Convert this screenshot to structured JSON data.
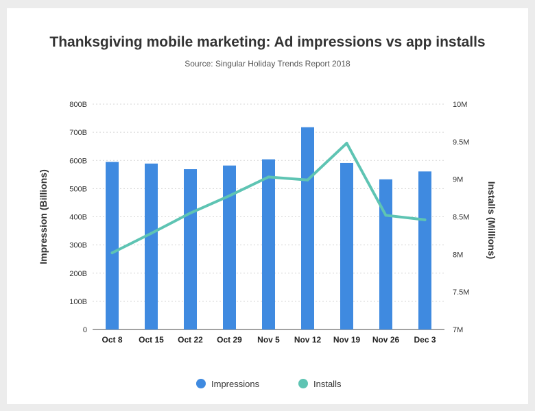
{
  "chart_data": {
    "type": "bar",
    "title": "Thanksgiving mobile marketing: Ad impressions vs app installs",
    "subtitle": "Source: Singular Holiday Trends Report 2018",
    "categories": [
      "Oct 8",
      "Oct 15",
      "Oct 22",
      "Oct 29",
      "Nov 5",
      "Nov 12",
      "Nov 19",
      "Nov 26",
      "Dec 3"
    ],
    "series": [
      {
        "name": "Impressions",
        "type": "bar",
        "axis": "left",
        "color": "#3f8ae0",
        "values": [
          595,
          589,
          569,
          582,
          604,
          718,
          591,
          533,
          561
        ]
      },
      {
        "name": "Installs",
        "type": "line",
        "axis": "right",
        "color": "#5ec4b3",
        "values": [
          8.02,
          8.28,
          8.55,
          8.78,
          9.03,
          8.99,
          9.48,
          8.52,
          8.46
        ]
      }
    ],
    "yleft": {
      "label": "Impression (Billions)",
      "ylim": [
        0,
        800
      ],
      "ticks": [
        0,
        100,
        200,
        300,
        400,
        500,
        600,
        700,
        800
      ],
      "tick_labels": [
        "0",
        "100B",
        "200B",
        "300B",
        "400B",
        "500B",
        "600B",
        "700B",
        "800B"
      ]
    },
    "yright": {
      "label": "Installs (Millions)",
      "ylim": [
        7,
        10
      ],
      "ticks": [
        7,
        7.5,
        8,
        8.5,
        9,
        9.5,
        10
      ],
      "tick_labels": [
        "7M",
        "7.5M",
        "8M",
        "8.5M",
        "9M",
        "9.5M",
        "10M"
      ]
    },
    "grid": true,
    "legend_position": "bottom-center"
  }
}
